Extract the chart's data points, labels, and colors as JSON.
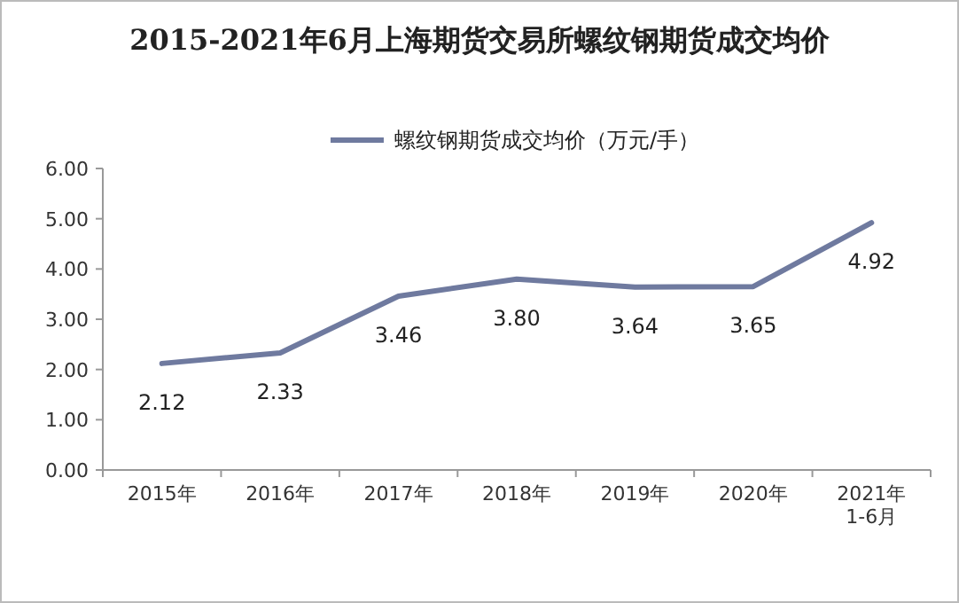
{
  "chart_data": {
    "type": "line",
    "title": "2015-2021年6月上海期货交易所螺纹钢期货成交均价",
    "categories": [
      "2015年",
      "2016年",
      "2017年",
      "2018年",
      "2019年",
      "2020年",
      "2021年1-6月"
    ],
    "series": [
      {
        "name": "螺纹钢期货成交均价（万元/手）",
        "color": "#6f7a9f",
        "values": [
          2.12,
          2.33,
          3.46,
          3.8,
          3.64,
          3.65,
          4.92
        ],
        "value_labels": [
          "2.12",
          "2.33",
          "3.46",
          "3.80",
          "3.64",
          "3.65",
          "4.92"
        ]
      }
    ],
    "ylim": [
      0,
      6
    ],
    "yticks": [
      {
        "value": 0,
        "label": "0.00"
      },
      {
        "value": 1,
        "label": "1.00"
      },
      {
        "value": 2,
        "label": "2.00"
      },
      {
        "value": 3,
        "label": "3.00"
      },
      {
        "value": 4,
        "label": "4.00"
      },
      {
        "value": 5,
        "label": "5.00"
      },
      {
        "value": 6,
        "label": "6.00"
      }
    ],
    "legend": "top",
    "grid": false,
    "marker": "none",
    "line_style": "solid"
  }
}
